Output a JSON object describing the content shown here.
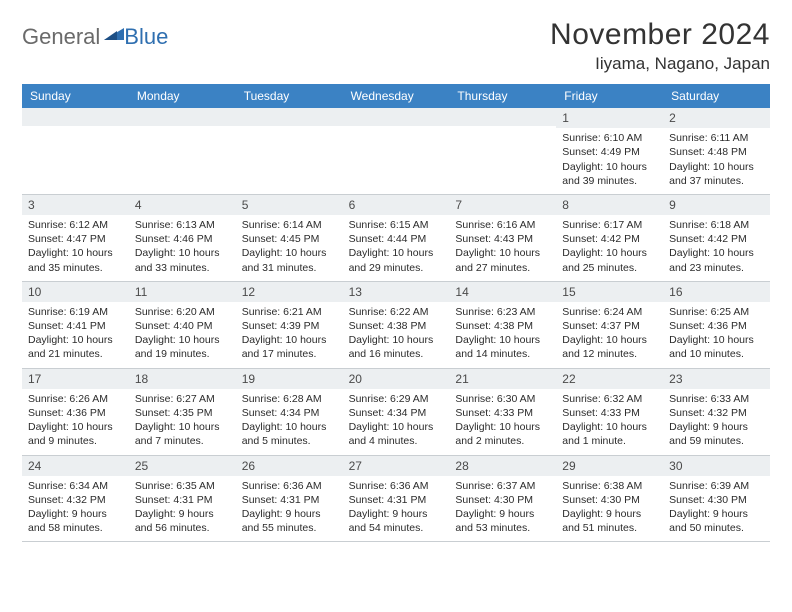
{
  "logo": {
    "general": "General",
    "blue": "Blue"
  },
  "title": "November 2024",
  "location": "Iiyama, Nagano, Japan",
  "colors": {
    "header_bg": "#3b82c4",
    "header_text": "#ffffff",
    "daynum_bg": "#eceff1",
    "border": "#c9ced2",
    "text": "#2b2b2b",
    "title_text": "#333333"
  },
  "day_names": [
    "Sunday",
    "Monday",
    "Tuesday",
    "Wednesday",
    "Thursday",
    "Friday",
    "Saturday"
  ],
  "weeks": [
    [
      null,
      null,
      null,
      null,
      null,
      {
        "n": "1",
        "sr": "Sunrise: 6:10 AM",
        "ss": "Sunset: 4:49 PM",
        "dl": "Daylight: 10 hours and 39 minutes."
      },
      {
        "n": "2",
        "sr": "Sunrise: 6:11 AM",
        "ss": "Sunset: 4:48 PM",
        "dl": "Daylight: 10 hours and 37 minutes."
      }
    ],
    [
      {
        "n": "3",
        "sr": "Sunrise: 6:12 AM",
        "ss": "Sunset: 4:47 PM",
        "dl": "Daylight: 10 hours and 35 minutes."
      },
      {
        "n": "4",
        "sr": "Sunrise: 6:13 AM",
        "ss": "Sunset: 4:46 PM",
        "dl": "Daylight: 10 hours and 33 minutes."
      },
      {
        "n": "5",
        "sr": "Sunrise: 6:14 AM",
        "ss": "Sunset: 4:45 PM",
        "dl": "Daylight: 10 hours and 31 minutes."
      },
      {
        "n": "6",
        "sr": "Sunrise: 6:15 AM",
        "ss": "Sunset: 4:44 PM",
        "dl": "Daylight: 10 hours and 29 minutes."
      },
      {
        "n": "7",
        "sr": "Sunrise: 6:16 AM",
        "ss": "Sunset: 4:43 PM",
        "dl": "Daylight: 10 hours and 27 minutes."
      },
      {
        "n": "8",
        "sr": "Sunrise: 6:17 AM",
        "ss": "Sunset: 4:42 PM",
        "dl": "Daylight: 10 hours and 25 minutes."
      },
      {
        "n": "9",
        "sr": "Sunrise: 6:18 AM",
        "ss": "Sunset: 4:42 PM",
        "dl": "Daylight: 10 hours and 23 minutes."
      }
    ],
    [
      {
        "n": "10",
        "sr": "Sunrise: 6:19 AM",
        "ss": "Sunset: 4:41 PM",
        "dl": "Daylight: 10 hours and 21 minutes."
      },
      {
        "n": "11",
        "sr": "Sunrise: 6:20 AM",
        "ss": "Sunset: 4:40 PM",
        "dl": "Daylight: 10 hours and 19 minutes."
      },
      {
        "n": "12",
        "sr": "Sunrise: 6:21 AM",
        "ss": "Sunset: 4:39 PM",
        "dl": "Daylight: 10 hours and 17 minutes."
      },
      {
        "n": "13",
        "sr": "Sunrise: 6:22 AM",
        "ss": "Sunset: 4:38 PM",
        "dl": "Daylight: 10 hours and 16 minutes."
      },
      {
        "n": "14",
        "sr": "Sunrise: 6:23 AM",
        "ss": "Sunset: 4:38 PM",
        "dl": "Daylight: 10 hours and 14 minutes."
      },
      {
        "n": "15",
        "sr": "Sunrise: 6:24 AM",
        "ss": "Sunset: 4:37 PM",
        "dl": "Daylight: 10 hours and 12 minutes."
      },
      {
        "n": "16",
        "sr": "Sunrise: 6:25 AM",
        "ss": "Sunset: 4:36 PM",
        "dl": "Daylight: 10 hours and 10 minutes."
      }
    ],
    [
      {
        "n": "17",
        "sr": "Sunrise: 6:26 AM",
        "ss": "Sunset: 4:36 PM",
        "dl": "Daylight: 10 hours and 9 minutes."
      },
      {
        "n": "18",
        "sr": "Sunrise: 6:27 AM",
        "ss": "Sunset: 4:35 PM",
        "dl": "Daylight: 10 hours and 7 minutes."
      },
      {
        "n": "19",
        "sr": "Sunrise: 6:28 AM",
        "ss": "Sunset: 4:34 PM",
        "dl": "Daylight: 10 hours and 5 minutes."
      },
      {
        "n": "20",
        "sr": "Sunrise: 6:29 AM",
        "ss": "Sunset: 4:34 PM",
        "dl": "Daylight: 10 hours and 4 minutes."
      },
      {
        "n": "21",
        "sr": "Sunrise: 6:30 AM",
        "ss": "Sunset: 4:33 PM",
        "dl": "Daylight: 10 hours and 2 minutes."
      },
      {
        "n": "22",
        "sr": "Sunrise: 6:32 AM",
        "ss": "Sunset: 4:33 PM",
        "dl": "Daylight: 10 hours and 1 minute."
      },
      {
        "n": "23",
        "sr": "Sunrise: 6:33 AM",
        "ss": "Sunset: 4:32 PM",
        "dl": "Daylight: 9 hours and 59 minutes."
      }
    ],
    [
      {
        "n": "24",
        "sr": "Sunrise: 6:34 AM",
        "ss": "Sunset: 4:32 PM",
        "dl": "Daylight: 9 hours and 58 minutes."
      },
      {
        "n": "25",
        "sr": "Sunrise: 6:35 AM",
        "ss": "Sunset: 4:31 PM",
        "dl": "Daylight: 9 hours and 56 minutes."
      },
      {
        "n": "26",
        "sr": "Sunrise: 6:36 AM",
        "ss": "Sunset: 4:31 PM",
        "dl": "Daylight: 9 hours and 55 minutes."
      },
      {
        "n": "27",
        "sr": "Sunrise: 6:36 AM",
        "ss": "Sunset: 4:31 PM",
        "dl": "Daylight: 9 hours and 54 minutes."
      },
      {
        "n": "28",
        "sr": "Sunrise: 6:37 AM",
        "ss": "Sunset: 4:30 PM",
        "dl": "Daylight: 9 hours and 53 minutes."
      },
      {
        "n": "29",
        "sr": "Sunrise: 6:38 AM",
        "ss": "Sunset: 4:30 PM",
        "dl": "Daylight: 9 hours and 51 minutes."
      },
      {
        "n": "30",
        "sr": "Sunrise: 6:39 AM",
        "ss": "Sunset: 4:30 PM",
        "dl": "Daylight: 9 hours and 50 minutes."
      }
    ]
  ]
}
